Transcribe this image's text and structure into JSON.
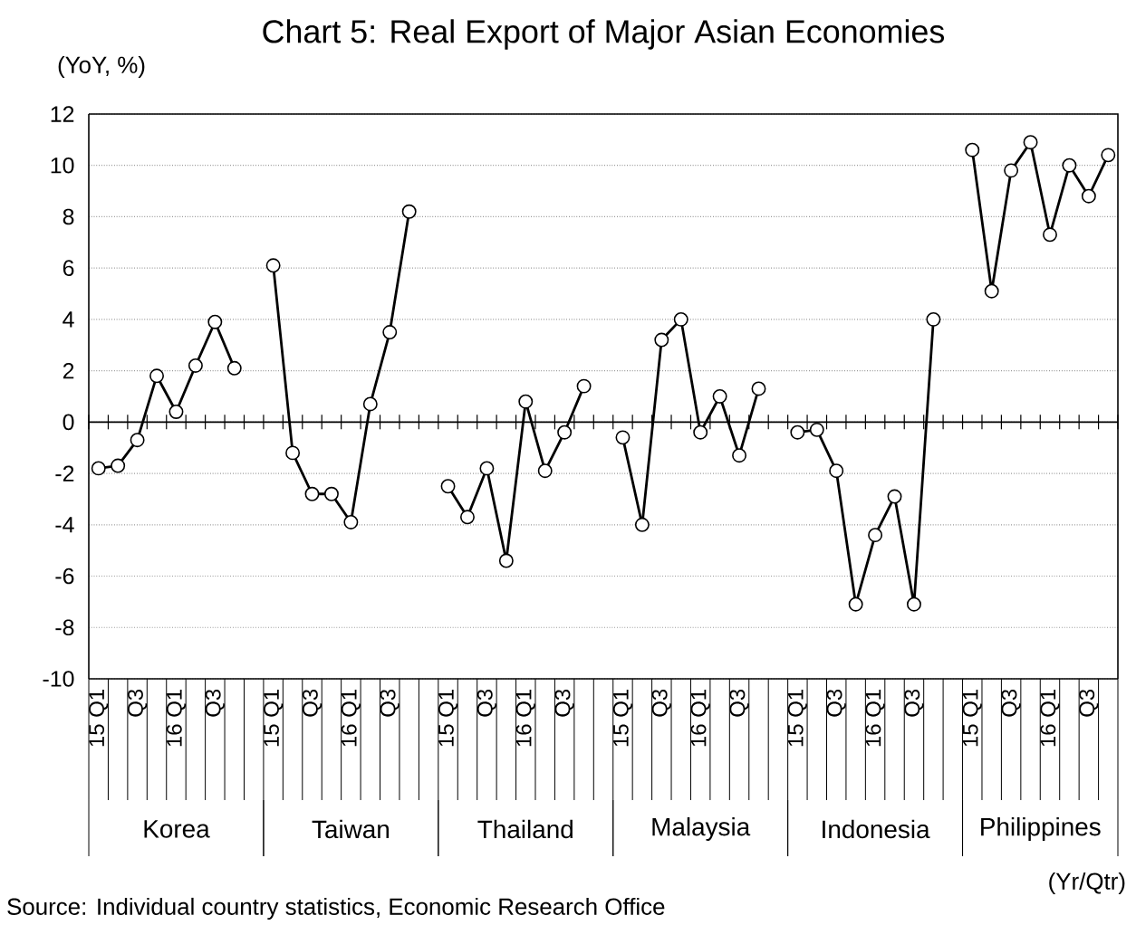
{
  "chart_data": {
    "type": "line",
    "title": "Chart 5: Real Export of Major Asian Economies",
    "ylabel": "(YoY, %)",
    "categories": [
      "15 Q1",
      null,
      "Q3",
      null,
      "16 Q1",
      null,
      "Q3",
      null,
      null,
      "15 Q1",
      null,
      "Q3",
      null,
      "16 Q1",
      null,
      "Q3",
      null,
      null,
      "15 Q1",
      null,
      "Q3",
      null,
      "16 Q1",
      null,
      "Q3",
      null,
      null,
      "15 Q1",
      null,
      "Q3",
      null,
      "16 Q1",
      null,
      "Q3",
      null,
      null,
      "15 Q1",
      null,
      "Q3",
      null,
      "16 Q1",
      null,
      "Q3",
      null,
      null,
      "15 Q1",
      null,
      "Q3",
      null,
      "16 Q1",
      null,
      "Q3",
      null
    ],
    "series": [
      {
        "name": "Korea",
        "color": "#000000",
        "values": [
          -1.8,
          -1.7,
          -0.7,
          1.8,
          0.4,
          2.2,
          3.9,
          2.1,
          null,
          null,
          null,
          null,
          null,
          null,
          null,
          null,
          null,
          null,
          null,
          null,
          null,
          null,
          null,
          null,
          null,
          null,
          null,
          null,
          null,
          null,
          null,
          null,
          null,
          null,
          null,
          null,
          null,
          null,
          null,
          null,
          null,
          null,
          null,
          null,
          null,
          null,
          null,
          null,
          null,
          null,
          null,
          null,
          null
        ]
      },
      {
        "name": "Taiwan",
        "color": "#000000",
        "values": [
          null,
          null,
          null,
          null,
          null,
          null,
          null,
          null,
          null,
          6.1,
          -1.2,
          -2.8,
          -2.8,
          -3.9,
          0.7,
          3.5,
          8.2,
          null,
          null,
          null,
          null,
          null,
          null,
          null,
          null,
          null,
          null,
          null,
          null,
          null,
          null,
          null,
          null,
          null,
          null,
          null,
          null,
          null,
          null,
          null,
          null,
          null,
          null,
          null,
          null,
          null,
          null,
          null,
          null,
          null,
          null,
          null,
          null
        ]
      },
      {
        "name": "Thailand",
        "color": "#000000",
        "values": [
          null,
          null,
          null,
          null,
          null,
          null,
          null,
          null,
          null,
          null,
          null,
          null,
          null,
          null,
          null,
          null,
          null,
          null,
          -2.5,
          -3.7,
          -1.8,
          -5.4,
          0.8,
          -1.9,
          -0.4,
          1.4,
          null,
          null,
          null,
          null,
          null,
          null,
          null,
          null,
          null,
          null,
          null,
          null,
          null,
          null,
          null,
          null,
          null,
          null,
          null,
          null,
          null,
          null,
          null,
          null,
          null,
          null,
          null
        ]
      },
      {
        "name": "Malaysia",
        "color": "#000000",
        "values": [
          null,
          null,
          null,
          null,
          null,
          null,
          null,
          null,
          null,
          null,
          null,
          null,
          null,
          null,
          null,
          null,
          null,
          null,
          null,
          null,
          null,
          null,
          null,
          null,
          null,
          null,
          null,
          -0.6,
          -4.0,
          3.2,
          4.0,
          -0.4,
          1.0,
          -1.3,
          1.3,
          null,
          null,
          null,
          null,
          null,
          null,
          null,
          null,
          null,
          null,
          null,
          null,
          null,
          null,
          null,
          null,
          null,
          null
        ]
      },
      {
        "name": "Indonesia",
        "color": "#000000",
        "values": [
          null,
          null,
          null,
          null,
          null,
          null,
          null,
          null,
          null,
          null,
          null,
          null,
          null,
          null,
          null,
          null,
          null,
          null,
          null,
          null,
          null,
          null,
          null,
          null,
          null,
          null,
          null,
          null,
          null,
          null,
          null,
          null,
          null,
          null,
          null,
          null,
          -0.4,
          -0.3,
          -1.9,
          -7.1,
          -4.4,
          -2.9,
          -7.1,
          4.0,
          null,
          null,
          null,
          null,
          null,
          null,
          null,
          null,
          null
        ]
      },
      {
        "name": "Philippines",
        "color": "#000000",
        "values": [
          null,
          null,
          null,
          null,
          null,
          null,
          null,
          null,
          null,
          null,
          null,
          null,
          null,
          null,
          null,
          null,
          null,
          null,
          null,
          null,
          null,
          null,
          null,
          null,
          null,
          null,
          null,
          null,
          null,
          null,
          null,
          null,
          null,
          null,
          null,
          null,
          null,
          null,
          null,
          null,
          null,
          null,
          null,
          null,
          null,
          10.6,
          5.1,
          9.8,
          10.9,
          7.3,
          10.0,
          8.8,
          10.4
        ]
      }
    ],
    "ylim": [
      -10,
      12
    ],
    "yticks": [
      -10,
      -8,
      -6,
      -4,
      -2,
      0,
      2,
      4,
      6,
      8,
      10,
      12
    ],
    "ref_lines": [
      {
        "axis": "y",
        "value": 0
      }
    ],
    "grid": "y",
    "legend": "bottom",
    "marker": "circle",
    "line_style": "solid",
    "annotations": [
      "(Yr/Qtr)",
      "Source: Individual country statistics, Economic Research Office"
    ]
  }
}
